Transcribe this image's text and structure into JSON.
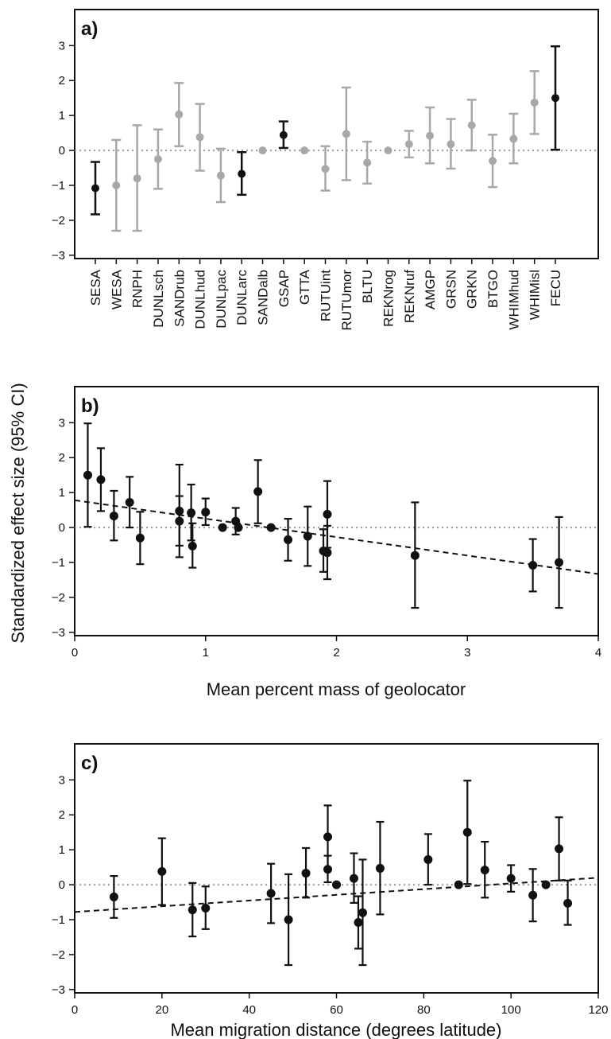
{
  "figure": {
    "shared_ylabel": "Standardized effect size (95% CI)"
  },
  "chart_data": [
    {
      "panel": "a)",
      "type": "errorbar",
      "xlabel": "",
      "ylabel": "Standardized effect size (95% CI)",
      "ylim": [
        -3,
        3
      ],
      "yticks": [
        -3,
        -2,
        -1,
        0,
        1,
        2,
        3
      ],
      "reference_line": 0,
      "colors": {
        "significant": "#111111",
        "nonsignificant": "#a8a8a8",
        "reference": "#9a9a9a"
      },
      "categories": [
        "SESA",
        "WESA",
        "RNPH",
        "DUNLsch",
        "SANDrub",
        "DUNLhud",
        "DUNLpac",
        "DUNLarc",
        "SANDalb",
        "GSAP",
        "GTTA",
        "RUTUint",
        "RUTUmor",
        "BLTU",
        "REKNrog",
        "REKNruf",
        "AMGP",
        "GRSN",
        "GRKN",
        "BTGO",
        "WHIMhud",
        "WHIMisl",
        "FECU"
      ],
      "estimates": [
        -1.08,
        -1.0,
        -0.8,
        -0.25,
        1.03,
        0.38,
        -0.72,
        -0.67,
        0.0,
        0.44,
        0.0,
        -0.53,
        0.47,
        -0.35,
        0.0,
        0.18,
        0.42,
        0.18,
        0.72,
        -0.3,
        0.33,
        1.37,
        1.5
      ],
      "lower": [
        -1.83,
        -2.3,
        -2.3,
        -1.1,
        0.12,
        -0.58,
        -1.48,
        -1.27,
        0.0,
        0.07,
        0.0,
        -1.15,
        -0.85,
        -0.95,
        0.0,
        -0.2,
        -0.37,
        -0.52,
        0.0,
        -1.05,
        -0.37,
        0.47,
        0.02
      ],
      "upper": [
        -0.33,
        0.3,
        0.72,
        0.6,
        1.93,
        1.33,
        0.05,
        -0.05,
        0.0,
        0.83,
        0.0,
        0.12,
        1.8,
        0.25,
        0.0,
        0.56,
        1.23,
        0.9,
        1.45,
        0.45,
        1.05,
        2.27,
        2.98
      ],
      "significant": [
        true,
        false,
        false,
        false,
        false,
        false,
        false,
        true,
        false,
        true,
        false,
        false,
        false,
        false,
        false,
        false,
        false,
        false,
        false,
        false,
        false,
        false,
        true
      ]
    },
    {
      "panel": "b)",
      "type": "scatter",
      "xlabel": "Mean percent mass of geolocator",
      "ylabel": "Standardized effect size (95% CI)",
      "xlim": [
        0,
        4
      ],
      "xticks": [
        0,
        1,
        2,
        3,
        4
      ],
      "ylim": [
        -3,
        3
      ],
      "yticks": [
        -3,
        -2,
        -1,
        0,
        1,
        2,
        3
      ],
      "reference_line": 0,
      "trend_line": {
        "x": [
          0,
          4
        ],
        "y": [
          0.78,
          -1.33
        ]
      },
      "points": [
        {
          "x": 0.1,
          "y": 1.5,
          "lo": 0.02,
          "hi": 2.98
        },
        {
          "x": 0.2,
          "y": 1.37,
          "lo": 0.47,
          "hi": 2.27
        },
        {
          "x": 0.3,
          "y": 0.33,
          "lo": -0.37,
          "hi": 1.05
        },
        {
          "x": 0.42,
          "y": 0.72,
          "lo": 0.0,
          "hi": 1.45
        },
        {
          "x": 0.5,
          "y": -0.3,
          "lo": -1.05,
          "hi": 0.45
        },
        {
          "x": 0.8,
          "y": 0.47,
          "lo": -0.85,
          "hi": 1.8
        },
        {
          "x": 0.8,
          "y": 0.18,
          "lo": -0.52,
          "hi": 0.9
        },
        {
          "x": 0.89,
          "y": 0.42,
          "lo": -0.37,
          "hi": 1.23
        },
        {
          "x": 0.9,
          "y": -0.53,
          "lo": -1.15,
          "hi": 0.12
        },
        {
          "x": 1.0,
          "y": 0.44,
          "lo": 0.07,
          "hi": 0.83
        },
        {
          "x": 1.13,
          "y": 0.0,
          "lo": 0.0,
          "hi": 0.0
        },
        {
          "x": 1.23,
          "y": 0.18,
          "lo": -0.2,
          "hi": 0.56
        },
        {
          "x": 1.25,
          "y": 0.0,
          "lo": 0.0,
          "hi": 0.0
        },
        {
          "x": 1.4,
          "y": 1.03,
          "lo": 0.12,
          "hi": 1.93
        },
        {
          "x": 1.5,
          "y": 0.0,
          "lo": 0.0,
          "hi": 0.0
        },
        {
          "x": 1.63,
          "y": -0.35,
          "lo": -0.95,
          "hi": 0.25
        },
        {
          "x": 1.78,
          "y": -0.25,
          "lo": -1.1,
          "hi": 0.6
        },
        {
          "x": 1.9,
          "y": -0.67,
          "lo": -1.27,
          "hi": -0.05
        },
        {
          "x": 1.93,
          "y": 0.38,
          "lo": -0.58,
          "hi": 1.33
        },
        {
          "x": 1.93,
          "y": -0.72,
          "lo": -1.48,
          "hi": 0.05
        },
        {
          "x": 2.6,
          "y": -0.8,
          "lo": -2.3,
          "hi": 0.72
        },
        {
          "x": 3.5,
          "y": -1.08,
          "lo": -1.83,
          "hi": -0.33
        },
        {
          "x": 3.7,
          "y": -1.0,
          "lo": -2.3,
          "hi": 0.3
        }
      ]
    },
    {
      "panel": "c)",
      "type": "scatter",
      "xlabel": "Mean migration distance (degrees latitude)",
      "ylabel": "Standardized effect size (95% CI)",
      "xlim": [
        0,
        120
      ],
      "xticks": [
        0,
        20,
        40,
        60,
        80,
        100,
        120
      ],
      "ylim": [
        -3,
        3
      ],
      "yticks": [
        -3,
        -2,
        -1,
        0,
        1,
        2,
        3
      ],
      "reference_line": 0,
      "trend_line": {
        "x": [
          0,
          120
        ],
        "y": [
          -0.78,
          0.2
        ]
      },
      "points": [
        {
          "x": 9,
          "y": -0.35,
          "lo": -0.95,
          "hi": 0.25
        },
        {
          "x": 20,
          "y": 0.38,
          "lo": -0.58,
          "hi": 1.33
        },
        {
          "x": 27,
          "y": -0.72,
          "lo": -1.48,
          "hi": 0.05
        },
        {
          "x": 30,
          "y": -0.67,
          "lo": -1.27,
          "hi": -0.05
        },
        {
          "x": 45,
          "y": -0.25,
          "lo": -1.1,
          "hi": 0.6
        },
        {
          "x": 49,
          "y": -1.0,
          "lo": -2.3,
          "hi": 0.3
        },
        {
          "x": 53,
          "y": 0.33,
          "lo": -0.37,
          "hi": 1.05
        },
        {
          "x": 58,
          "y": 1.37,
          "lo": 0.47,
          "hi": 2.27
        },
        {
          "x": 58,
          "y": 0.44,
          "lo": 0.07,
          "hi": 0.83
        },
        {
          "x": 60,
          "y": 0.0,
          "lo": 0.0,
          "hi": 0.0
        },
        {
          "x": 64,
          "y": 0.18,
          "lo": -0.52,
          "hi": 0.9
        },
        {
          "x": 65,
          "y": -1.08,
          "lo": -1.83,
          "hi": -0.33
        },
        {
          "x": 66,
          "y": -0.8,
          "lo": -2.3,
          "hi": 0.72
        },
        {
          "x": 70,
          "y": 0.47,
          "lo": -0.85,
          "hi": 1.8
        },
        {
          "x": 81,
          "y": 0.72,
          "lo": 0.0,
          "hi": 1.45
        },
        {
          "x": 88,
          "y": 0.0,
          "lo": 0.0,
          "hi": 0.0
        },
        {
          "x": 90,
          "y": 1.5,
          "lo": 0.02,
          "hi": 2.98
        },
        {
          "x": 94,
          "y": 0.42,
          "lo": -0.37,
          "hi": 1.23
        },
        {
          "x": 100,
          "y": 0.18,
          "lo": -0.2,
          "hi": 0.56
        },
        {
          "x": 105,
          "y": -0.3,
          "lo": -1.05,
          "hi": 0.45
        },
        {
          "x": 108,
          "y": 0.0,
          "lo": 0.0,
          "hi": 0.0
        },
        {
          "x": 111,
          "y": 1.03,
          "lo": 0.12,
          "hi": 1.93
        },
        {
          "x": 113,
          "y": -0.53,
          "lo": -1.15,
          "hi": 0.12
        }
      ]
    }
  ]
}
